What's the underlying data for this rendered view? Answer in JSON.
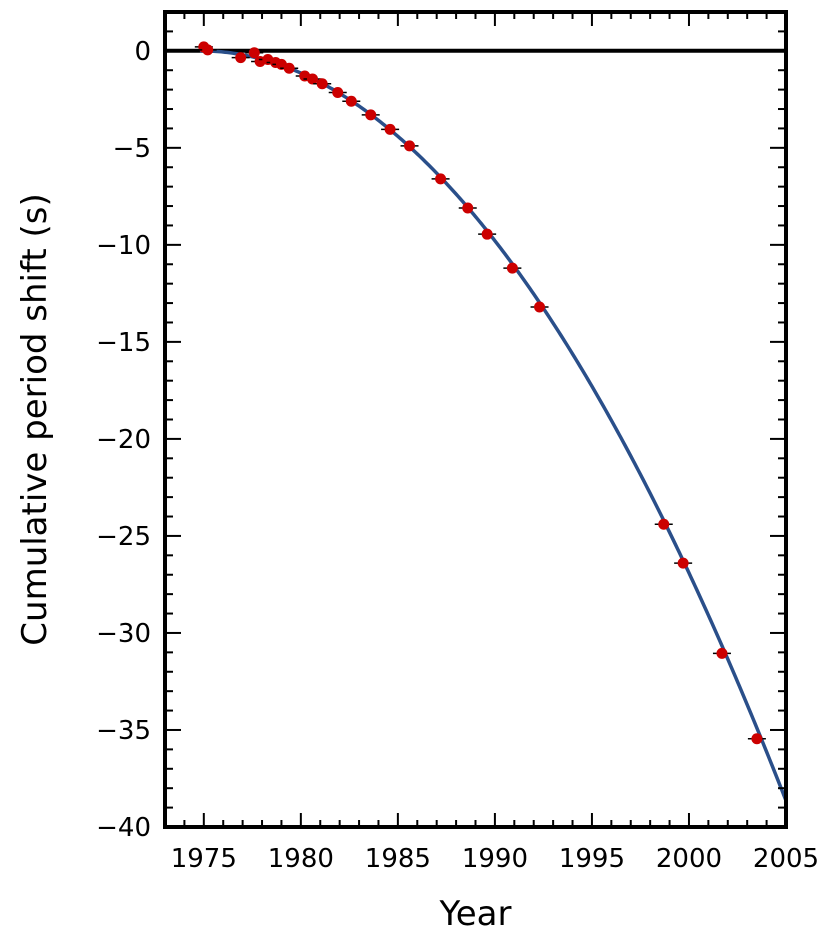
{
  "chart_data": {
    "type": "scatter",
    "xlabel": "Year",
    "ylabel": "Cumulative period shift (s)",
    "xlim": [
      1973,
      2005
    ],
    "ylim": [
      -40,
      2
    ],
    "xticks": [
      1975,
      1980,
      1985,
      1990,
      1995,
      2000,
      2005
    ],
    "yticks": [
      0,
      -5,
      -10,
      -15,
      -20,
      -25,
      -30,
      -35,
      -40
    ],
    "tick_labels_x": [
      "1975",
      "1980",
      "1985",
      "1990",
      "1995",
      "2000",
      "2005"
    ],
    "tick_labels_y": [
      "0",
      "−5",
      "−10",
      "−15",
      "−20",
      "−25",
      "−30",
      "−35",
      "−40"
    ],
    "grid": false,
    "zero_line": true,
    "colors": {
      "points": "#cc0000",
      "curve": "#2a4f8a",
      "zero_line": "#000000",
      "frame": "#000000"
    },
    "series": [
      {
        "kind": "points",
        "x": [
          1975.0,
          1975.2,
          1976.9,
          1977.6,
          1977.9,
          1978.3,
          1978.7,
          1979.0,
          1979.4,
          1980.2,
          1980.6,
          1981.1,
          1981.9,
          1982.6,
          1983.6,
          1984.6,
          1985.6,
          1987.2,
          1988.6,
          1989.6,
          1990.9,
          1992.3,
          1998.7,
          1999.7,
          2001.7,
          2003.5
        ],
        "y": [
          0.2,
          0.05,
          -0.35,
          -0.1,
          -0.55,
          -0.45,
          -0.6,
          -0.7,
          -0.9,
          -1.3,
          -1.45,
          -1.7,
          -2.15,
          -2.6,
          -3.3,
          -4.05,
          -4.9,
          -6.6,
          -8.1,
          -9.45,
          -11.2,
          -13.2,
          -24.4,
          -26.4,
          -31.05,
          -35.45
        ]
      },
      {
        "kind": "curve",
        "model": "quadratic",
        "t0": 1974.8,
        "coefficient": -0.04237,
        "x_range": [
          1974.8,
          2005
        ]
      }
    ]
  }
}
